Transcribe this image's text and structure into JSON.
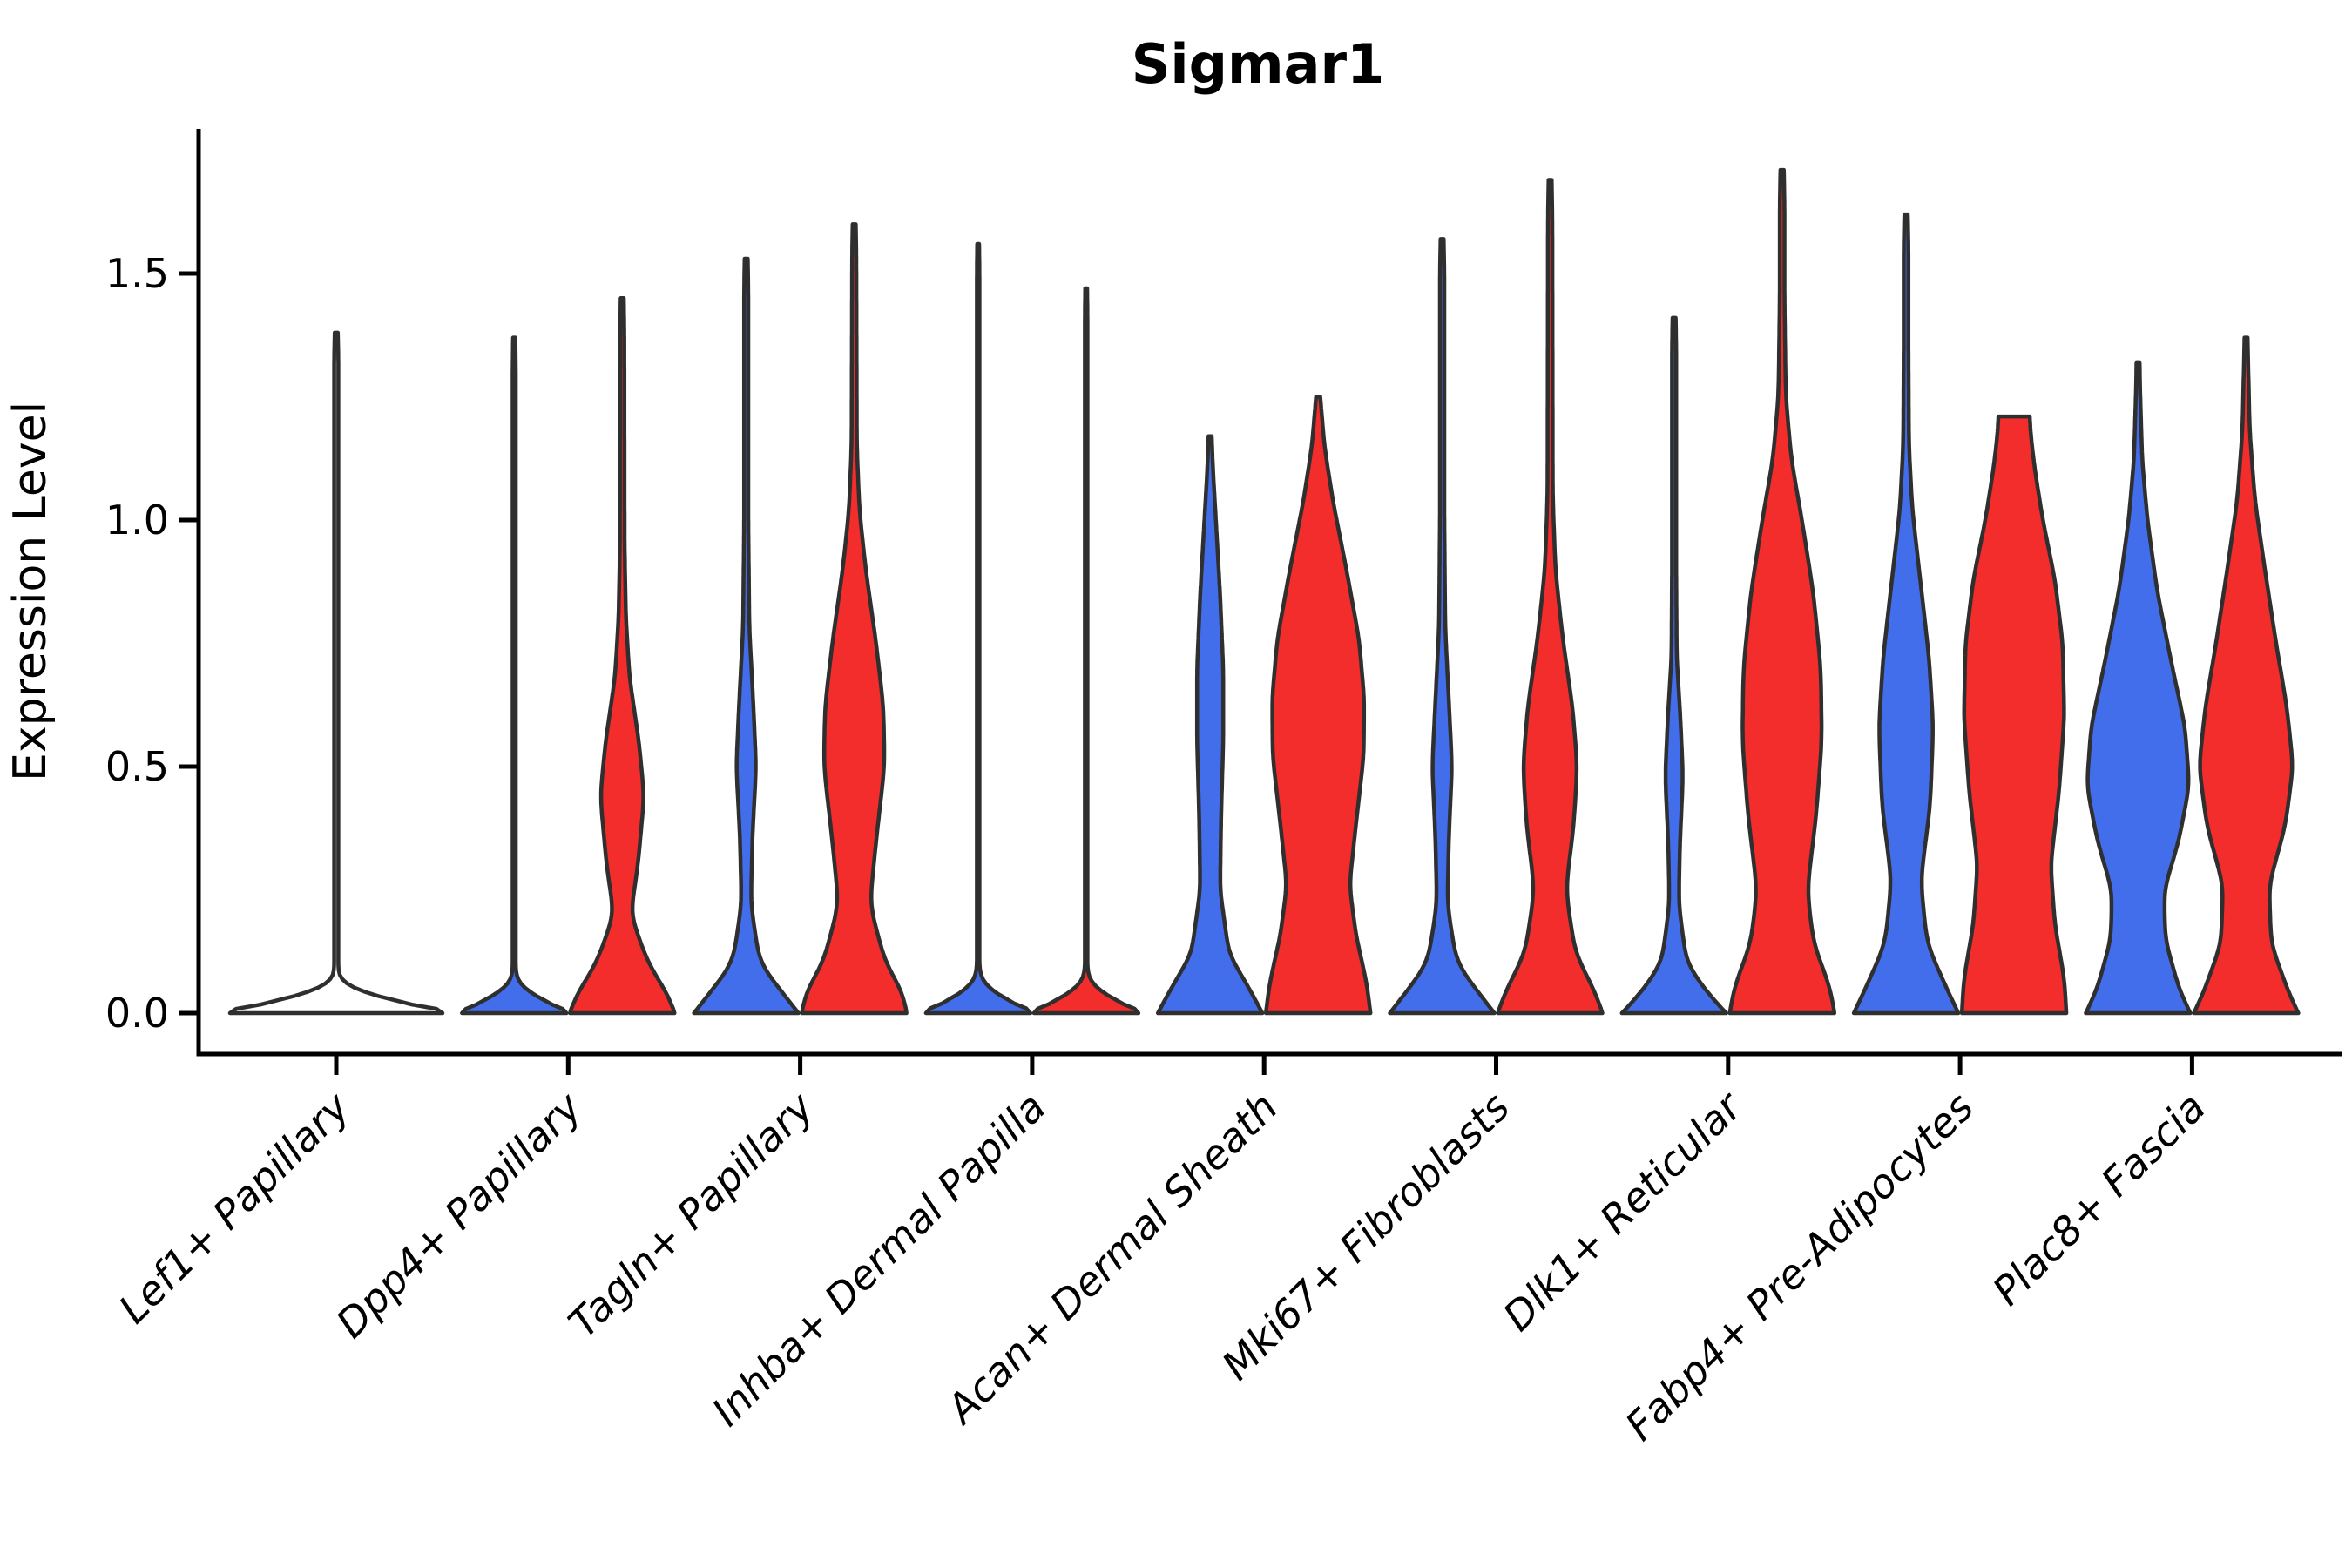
{
  "title": "Sigmar1",
  "y_axis": {
    "label": "Expression Level",
    "ticks": [
      "0.0",
      "0.5",
      "1.0",
      "1.5"
    ],
    "tick_values": [
      0.0,
      0.5,
      1.0,
      1.5
    ]
  },
  "colors": {
    "blue_fill": "#426EEB",
    "red_fill": "#F32C2C",
    "outline": "#2F2F2F",
    "axis": "#000000"
  },
  "chart_data": {
    "type": "violin",
    "title": "Sigmar1",
    "ylabel": "Expression Level",
    "ylim": [
      -0.08,
      1.79
    ],
    "grid": false,
    "legend": "none",
    "split_groups": [
      "blue",
      "red"
    ],
    "categories": [
      "Lef1+ Papillary",
      "Dpp4+ Papillary",
      "Tagln+ Papillary",
      "Inhba+ Dermal Papilla",
      "Acan+ Dermal Sheath",
      "Mki67+ Fibroblasts",
      "Dlk1+ Reticular",
      "Fabp4+ Pre-Adipocytes",
      "Plac8+ Fascia"
    ],
    "groups": [
      {
        "category": "Lef1+ Papillary",
        "violins": [
          {
            "group": "single",
            "color_key": "none",
            "side": "full",
            "max_expression": 1.38,
            "density_profile": [
              [
                0,
                1
              ],
              [
                0.012,
                0.92
              ],
              [
                0.045,
                0.02
              ],
              [
                1.33,
                0.02
              ],
              [
                1.38,
                0.015
              ]
            ]
          }
        ]
      },
      {
        "category": "Dpp4+ Papillary",
        "violins": [
          {
            "group": "blue",
            "color_key": "blue",
            "side": "left",
            "max_expression": 1.37,
            "density_profile": [
              [
                0,
                1
              ],
              [
                0.012,
                0.9
              ],
              [
                0.05,
                0.03
              ],
              [
                1.31,
                0.03
              ],
              [
                1.37,
                0.022
              ]
            ]
          },
          {
            "group": "red",
            "color_key": "red",
            "side": "right",
            "max_expression": 1.45,
            "density_profile": [
              [
                0,
                1
              ],
              [
                0.03,
                0.92
              ],
              [
                0.1,
                0.5
              ],
              [
                0.2,
                0.16
              ],
              [
                0.3,
                0.3
              ],
              [
                0.44,
                0.42
              ],
              [
                0.55,
                0.32
              ],
              [
                0.68,
                0.14
              ],
              [
                0.8,
                0.07
              ],
              [
                0.95,
                0.045
              ],
              [
                1.38,
                0.04
              ],
              [
                1.45,
                0.03
              ]
            ]
          }
        ]
      },
      {
        "category": "Tagln+ Papillary",
        "violins": [
          {
            "group": "blue",
            "color_key": "blue",
            "side": "left",
            "max_expression": 1.53,
            "density_profile": [
              [
                0,
                1
              ],
              [
                0.03,
                0.78
              ],
              [
                0.1,
                0.26
              ],
              [
                0.22,
                0.09
              ],
              [
                0.36,
                0.12
              ],
              [
                0.5,
                0.19
              ],
              [
                0.64,
                0.13
              ],
              [
                0.78,
                0.06
              ],
              [
                1.0,
                0.04
              ],
              [
                1.47,
                0.04
              ],
              [
                1.53,
                0.03
              ]
            ]
          },
          {
            "group": "red",
            "color_key": "red",
            "side": "right",
            "max_expression": 1.6,
            "density_profile": [
              [
                0,
                1
              ],
              [
                0.04,
                0.95
              ],
              [
                0.1,
                0.6
              ],
              [
                0.22,
                0.3
              ],
              [
                0.35,
                0.42
              ],
              [
                0.5,
                0.58
              ],
              [
                0.62,
                0.56
              ],
              [
                0.75,
                0.42
              ],
              [
                0.9,
                0.22
              ],
              [
                1.02,
                0.1
              ],
              [
                1.15,
                0.05
              ],
              [
                1.54,
                0.04
              ],
              [
                1.6,
                0.03
              ]
            ]
          }
        ]
      },
      {
        "category": "Inhba+ Dermal Papilla",
        "violins": [
          {
            "group": "blue",
            "color_key": "blue",
            "side": "left",
            "max_expression": 1.56,
            "density_profile": [
              [
                0,
                1
              ],
              [
                0.012,
                0.9
              ],
              [
                0.05,
                0.025
              ],
              [
                1.51,
                0.025
              ],
              [
                1.56,
                0.018
              ]
            ]
          },
          {
            "group": "red",
            "color_key": "red",
            "side": "right",
            "max_expression": 1.47,
            "density_profile": [
              [
                0,
                1
              ],
              [
                0.012,
                0.9
              ],
              [
                0.05,
                0.025
              ],
              [
                1.42,
                0.025
              ],
              [
                1.47,
                0.018
              ]
            ]
          }
        ]
      },
      {
        "category": "Acan+ Dermal Sheath",
        "violins": [
          {
            "group": "blue",
            "color_key": "blue",
            "side": "left",
            "max_expression": 1.17,
            "density_profile": [
              [
                0,
                1
              ],
              [
                0.04,
                0.8
              ],
              [
                0.12,
                0.36
              ],
              [
                0.25,
                0.19
              ],
              [
                0.4,
                0.21
              ],
              [
                0.55,
                0.25
              ],
              [
                0.7,
                0.25
              ],
              [
                0.85,
                0.19
              ],
              [
                1.0,
                0.11
              ],
              [
                1.1,
                0.055
              ],
              [
                1.17,
                0.03
              ]
            ]
          },
          {
            "group": "red",
            "color_key": "red",
            "side": "right",
            "max_expression": 1.25,
            "density_profile": [
              [
                0,
                1
              ],
              [
                0.06,
                0.93
              ],
              [
                0.16,
                0.72
              ],
              [
                0.26,
                0.6
              ],
              [
                0.38,
                0.72
              ],
              [
                0.52,
                0.87
              ],
              [
                0.64,
                0.88
              ],
              [
                0.76,
                0.78
              ],
              [
                0.9,
                0.54
              ],
              [
                1.04,
                0.28
              ],
              [
                1.15,
                0.12
              ],
              [
                1.25,
                0.04
              ]
            ]
          }
        ]
      },
      {
        "category": "Mki67+ Fibroblasts",
        "violins": [
          {
            "group": "blue",
            "color_key": "blue",
            "side": "left",
            "max_expression": 1.57,
            "density_profile": [
              [
                0,
                1
              ],
              [
                0.03,
                0.78
              ],
              [
                0.1,
                0.28
              ],
              [
                0.22,
                0.1
              ],
              [
                0.36,
                0.13
              ],
              [
                0.5,
                0.19
              ],
              [
                0.63,
                0.13
              ],
              [
                0.78,
                0.06
              ],
              [
                1.0,
                0.042
              ],
              [
                1.5,
                0.042
              ],
              [
                1.57,
                0.03
              ]
            ]
          },
          {
            "group": "red",
            "color_key": "red",
            "side": "right",
            "max_expression": 1.69,
            "density_profile": [
              [
                0,
                1
              ],
              [
                0.04,
                0.88
              ],
              [
                0.12,
                0.48
              ],
              [
                0.25,
                0.3
              ],
              [
                0.38,
                0.45
              ],
              [
                0.5,
                0.52
              ],
              [
                0.62,
                0.43
              ],
              [
                0.76,
                0.24
              ],
              [
                0.9,
                0.1
              ],
              [
                1.05,
                0.05
              ],
              [
                1.62,
                0.042
              ],
              [
                1.69,
                0.03
              ]
            ]
          }
        ]
      },
      {
        "category": "Dlk1+ Reticular",
        "violins": [
          {
            "group": "blue",
            "color_key": "blue",
            "side": "left",
            "max_expression": 1.41,
            "density_profile": [
              [
                0,
                1
              ],
              [
                0.03,
                0.72
              ],
              [
                0.1,
                0.24
              ],
              [
                0.22,
                0.09
              ],
              [
                0.34,
                0.11
              ],
              [
                0.48,
                0.17
              ],
              [
                0.6,
                0.12
              ],
              [
                0.72,
                0.05
              ],
              [
                0.9,
                0.04
              ],
              [
                1.35,
                0.04
              ],
              [
                1.41,
                0.03
              ]
            ]
          },
          {
            "group": "red",
            "color_key": "red",
            "side": "right",
            "max_expression": 1.71,
            "density_profile": [
              [
                0,
                1
              ],
              [
                0.05,
                0.93
              ],
              [
                0.14,
                0.6
              ],
              [
                0.25,
                0.48
              ],
              [
                0.4,
                0.65
              ],
              [
                0.55,
                0.76
              ],
              [
                0.7,
                0.74
              ],
              [
                0.85,
                0.6
              ],
              [
                1.0,
                0.38
              ],
              [
                1.12,
                0.18
              ],
              [
                1.25,
                0.07
              ],
              [
                1.45,
                0.045
              ],
              [
                1.65,
                0.045
              ],
              [
                1.71,
                0.032
              ]
            ]
          }
        ]
      },
      {
        "category": "Fabp4+ Pre-Adipocytes",
        "violins": [
          {
            "group": "blue",
            "color_key": "blue",
            "side": "left",
            "max_expression": 1.62,
            "density_profile": [
              [
                0,
                1
              ],
              [
                0.04,
                0.82
              ],
              [
                0.14,
                0.4
              ],
              [
                0.27,
                0.28
              ],
              [
                0.42,
                0.46
              ],
              [
                0.58,
                0.52
              ],
              [
                0.72,
                0.44
              ],
              [
                0.88,
                0.27
              ],
              [
                1.02,
                0.12
              ],
              [
                1.15,
                0.055
              ],
              [
                1.35,
                0.045
              ],
              [
                1.56,
                0.045
              ],
              [
                1.62,
                0.032
              ]
            ]
          },
          {
            "group": "red",
            "color_key": "red",
            "side": "right",
            "max_expression": 1.21,
            "density_profile": [
              [
                0,
                1
              ],
              [
                0.07,
                0.96
              ],
              [
                0.18,
                0.78
              ],
              [
                0.3,
                0.7
              ],
              [
                0.45,
                0.86
              ],
              [
                0.6,
                0.96
              ],
              [
                0.75,
                0.93
              ],
              [
                0.88,
                0.78
              ],
              [
                1.0,
                0.55
              ],
              [
                1.1,
                0.4
              ],
              [
                1.17,
                0.32
              ],
              [
                1.21,
                0.3
              ]
            ]
          }
        ]
      },
      {
        "category": "Plac8+ Fascia",
        "violins": [
          {
            "group": "blue",
            "color_key": "blue",
            "side": "left",
            "max_expression": 1.32,
            "density_profile": [
              [
                0,
                1
              ],
              [
                0.05,
                0.78
              ],
              [
                0.15,
                0.52
              ],
              [
                0.25,
                0.5
              ],
              [
                0.35,
                0.78
              ],
              [
                0.46,
                0.98
              ],
              [
                0.58,
                0.9
              ],
              [
                0.72,
                0.62
              ],
              [
                0.86,
                0.36
              ],
              [
                1.0,
                0.18
              ],
              [
                1.12,
                0.08
              ],
              [
                1.26,
                0.04
              ],
              [
                1.32,
                0.03
              ]
            ]
          },
          {
            "group": "red",
            "color_key": "red",
            "side": "right",
            "max_expression": 1.37,
            "density_profile": [
              [
                0,
                1
              ],
              [
                0.04,
                0.82
              ],
              [
                0.14,
                0.48
              ],
              [
                0.26,
                0.44
              ],
              [
                0.38,
                0.75
              ],
              [
                0.5,
                0.9
              ],
              [
                0.62,
                0.78
              ],
              [
                0.76,
                0.56
              ],
              [
                0.9,
                0.36
              ],
              [
                1.04,
                0.17
              ],
              [
                1.18,
                0.07
              ],
              [
                1.32,
                0.04
              ],
              [
                1.37,
                0.03
              ]
            ]
          }
        ]
      }
    ]
  }
}
